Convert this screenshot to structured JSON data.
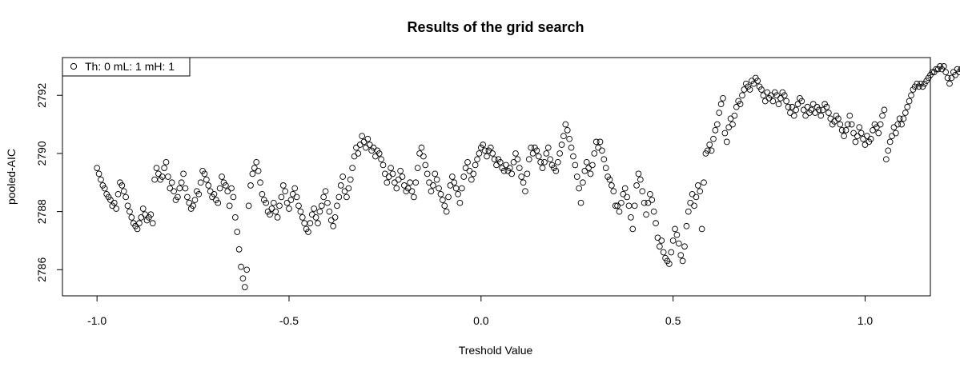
{
  "chart_data": {
    "type": "scatter",
    "title": "Results of the grid search",
    "xlabel": "Treshold Value",
    "ylabel": "pooled-AIC",
    "xlim": [
      -1.09,
      1.17
    ],
    "ylim": [
      2785.1,
      2793.3
    ],
    "x_ticks": [
      -1.0,
      -0.5,
      0.0,
      0.5,
      1.0
    ],
    "x_tick_labels": [
      "-1.0",
      "-0.5",
      "0.0",
      "0.5",
      "1.0"
    ],
    "y_ticks": [
      2786,
      2788,
      2790,
      2792
    ],
    "y_tick_labels": [
      "2786",
      "2788",
      "2790",
      "2792"
    ],
    "grid": false,
    "legend": {
      "position": "top-left",
      "entries": [
        "Th: 0 mL: 1 mH: 1"
      ]
    },
    "series": [
      {
        "name": "Th: 0 mL: 1 mH: 1",
        "marker": "open-circle",
        "color": "#000000",
        "x_start": -1.0,
        "x_step": 0.005,
        "values": [
          2789.5,
          2789.3,
          2789.1,
          2788.9,
          2788.8,
          2788.6,
          2788.5,
          2788.4,
          2788.2,
          2788.3,
          2788.1,
          2788.6,
          2789.0,
          2788.9,
          2788.7,
          2788.5,
          2788.2,
          2788.0,
          2787.8,
          2787.6,
          2787.5,
          2787.4,
          2787.6,
          2787.8,
          2788.1,
          2787.9,
          2787.7,
          2787.8,
          2787.9,
          2787.6,
          2789.1,
          2789.5,
          2789.3,
          2789.1,
          2789.2,
          2789.5,
          2789.7,
          2789.2,
          2788.8,
          2789.0,
          2788.7,
          2788.4,
          2788.5,
          2788.8,
          2789.0,
          2789.3,
          2788.8,
          2788.5,
          2788.3,
          2788.1,
          2788.2,
          2788.4,
          2788.7,
          2788.6,
          2789.0,
          2789.4,
          2789.3,
          2789.1,
          2788.9,
          2788.7,
          2788.5,
          2788.6,
          2788.4,
          2788.3,
          2788.8,
          2789.2,
          2789.0,
          2788.9,
          2788.7,
          2788.2,
          2788.8,
          2788.5,
          2787.8,
          2787.3,
          2786.7,
          2786.1,
          2785.7,
          2785.4,
          2786.0,
          2788.2,
          2788.9,
          2789.3,
          2789.5,
          2789.7,
          2789.4,
          2789.0,
          2788.6,
          2788.4,
          2788.3,
          2788.0,
          2787.9,
          2788.1,
          2788.3,
          2788.0,
          2787.8,
          2788.2,
          2788.5,
          2788.9,
          2788.7,
          2788.3,
          2788.1,
          2788.4,
          2788.6,
          2788.8,
          2788.5,
          2788.2,
          2788.0,
          2787.8,
          2787.6,
          2787.4,
          2787.3,
          2787.6,
          2787.9,
          2788.1,
          2787.8,
          2787.6,
          2788.0,
          2788.2,
          2788.5,
          2788.7,
          2788.3,
          2788.0,
          2787.7,
          2787.5,
          2787.8,
          2788.2,
          2788.5,
          2788.9,
          2789.2,
          2788.7,
          2788.5,
          2788.8,
          2789.1,
          2789.5,
          2789.9,
          2790.2,
          2790.0,
          2790.3,
          2790.6,
          2790.4,
          2790.2,
          2790.5,
          2790.3,
          2790.1,
          2790.2,
          2789.9,
          2790.1,
          2790.0,
          2789.8,
          2789.6,
          2789.3,
          2789.0,
          2789.2,
          2789.5,
          2789.3,
          2789.0,
          2788.8,
          2789.1,
          2789.4,
          2789.2,
          2788.9,
          2788.7,
          2788.8,
          2789.0,
          2788.7,
          2788.5,
          2789.0,
          2789.5,
          2790.0,
          2790.2,
          2789.9,
          2789.6,
          2789.3,
          2789.0,
          2788.7,
          2788.9,
          2789.3,
          2789.1,
          2788.8,
          2788.6,
          2788.4,
          2788.2,
          2788.0,
          2788.5,
          2788.9,
          2789.2,
          2789.0,
          2788.8,
          2788.6,
          2788.3,
          2788.8,
          2789.2,
          2789.5,
          2789.7,
          2789.4,
          2789.1,
          2789.3,
          2789.6,
          2789.8,
          2790.0,
          2790.2,
          2790.3,
          2790.1,
          2789.9,
          2790.1,
          2790.2,
          2790.0,
          2789.8,
          2789.6,
          2789.8,
          2789.7,
          2789.5,
          2789.4,
          2789.6,
          2789.4,
          2789.5,
          2789.3,
          2789.7,
          2790.0,
          2789.8,
          2789.5,
          2789.2,
          2789.0,
          2788.7,
          2789.3,
          2789.8,
          2790.2,
          2790.0,
          2790.2,
          2790.1,
          2789.9,
          2789.7,
          2789.5,
          2789.7,
          2790.0,
          2790.2,
          2789.8,
          2789.6,
          2789.5,
          2789.4,
          2789.7,
          2790.0,
          2790.3,
          2790.6,
          2791.0,
          2790.8,
          2790.5,
          2790.2,
          2789.9,
          2789.6,
          2789.2,
          2788.8,
          2788.3,
          2789.0,
          2789.4,
          2789.7,
          2789.5,
          2789.3,
          2789.6,
          2790.0,
          2790.4,
          2790.2,
          2790.4,
          2790.1,
          2789.8,
          2789.5,
          2789.2,
          2789.1,
          2788.9,
          2788.7,
          2788.2,
          2788.2,
          2788.0,
          2788.3,
          2788.6,
          2788.8,
          2788.5,
          2788.2,
          2787.8,
          2787.4,
          2788.2,
          2788.9,
          2789.3,
          2789.1,
          2788.7,
          2788.3,
          2787.9,
          2788.3,
          2788.6,
          2788.4,
          2788.0,
          2787.6,
          2787.1,
          2786.8,
          2787.0,
          2786.6,
          2786.4,
          2786.3,
          2786.2,
          2786.6,
          2787.0,
          2787.4,
          2787.2,
          2786.9,
          2786.5,
          2786.3,
          2786.8,
          2787.5,
          2788.0,
          2788.3,
          2788.6,
          2788.2,
          2788.5,
          2788.9,
          2788.7,
          2787.4,
          2789.0,
          2790.0,
          2790.1,
          2790.3,
          2790.1,
          2790.5,
          2790.8,
          2791.0,
          2791.4,
          2791.7,
          2791.9,
          2790.7,
          2790.4,
          2790.9,
          2791.2,
          2791.0,
          2791.3,
          2791.6,
          2791.8,
          2791.7,
          2792.0,
          2792.2,
          2792.4,
          2792.3,
          2792.2,
          2792.5,
          2792.4,
          2792.6,
          2792.5,
          2792.3,
          2792.2,
          2792.0,
          2791.8,
          2792.1,
          2791.9,
          2792.0,
          2791.8,
          2792.1,
          2792.0,
          2791.7,
          2791.9,
          2792.1,
          2792.0,
          2791.8,
          2791.6,
          2791.4,
          2791.6,
          2791.3,
          2791.5,
          2791.7,
          2791.9,
          2791.8,
          2791.5,
          2791.3,
          2791.6,
          2791.4,
          2791.5,
          2791.7,
          2791.4,
          2791.6,
          2791.5,
          2791.3,
          2791.5,
          2791.7,
          2791.6,
          2791.4,
          2791.2,
          2791.0,
          2791.1,
          2791.3,
          2791.2,
          2791.0,
          2790.8,
          2790.6,
          2790.8,
          2791.0,
          2791.3,
          2791.0,
          2790.7,
          2790.4,
          2790.6,
          2790.9,
          2790.7,
          2790.5,
          2790.3,
          2790.6,
          2790.4,
          2790.5,
          2790.8,
          2791.0,
          2790.9,
          2790.7,
          2791.0,
          2791.3,
          2791.5,
          2789.8,
          2790.1,
          2790.4,
          2790.6,
          2790.9,
          2790.7,
          2791.0,
          2791.2,
          2791.0,
          2791.2,
          2791.4,
          2791.6,
          2791.8,
          2792.0,
          2792.2,
          2792.3,
          2792.4,
          2792.3,
          2792.4,
          2792.3,
          2792.4,
          2792.5,
          2792.6,
          2792.7,
          2792.8,
          2792.8,
          2792.9,
          2792.9,
          2793.0,
          2792.9,
          2793.0,
          2792.8,
          2792.6,
          2792.4,
          2792.6,
          2792.8,
          2792.7,
          2792.9,
          2792.8,
          2792.9,
          2793.0
        ]
      }
    ]
  }
}
